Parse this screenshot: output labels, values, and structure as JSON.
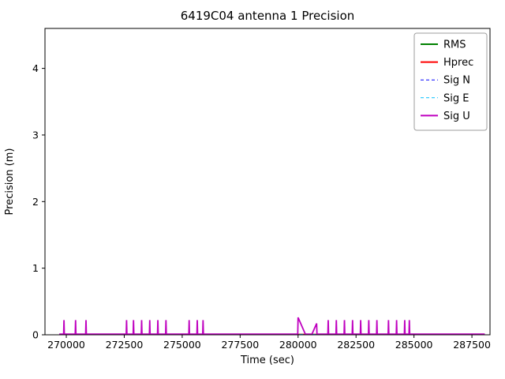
{
  "chart_data": {
    "type": "line",
    "title": "6419C04 antenna 1 Precision",
    "xlabel": "Time (sec)",
    "ylabel": "Precision (m)",
    "xlim": [
      269080,
      288280
    ],
    "ylim": [
      0,
      4.6
    ],
    "xticks": [
      270000,
      272500,
      275000,
      277500,
      280000,
      282500,
      285000,
      287500
    ],
    "yticks": [
      0,
      1,
      2,
      3,
      4
    ],
    "grid": false,
    "legend_position": "upper right",
    "series": [
      {
        "name": "RMS",
        "color": "#008000",
        "style": "solid",
        "width": 1.6,
        "points": [
          [
            269700,
            0.005
          ],
          [
            288050,
            0.005
          ]
        ]
      },
      {
        "name": "Hprec",
        "color": "#ff0000",
        "style": "solid",
        "width": 1.6,
        "points": [
          [
            269700,
            0.006
          ],
          [
            288050,
            0.006
          ]
        ]
      },
      {
        "name": "Sig N",
        "color": "#0000ff",
        "style": "dashed",
        "width": 1,
        "points": [
          [
            269700,
            0.004
          ],
          [
            288050,
            0.004
          ]
        ]
      },
      {
        "name": "Sig E",
        "color": "#00bfff",
        "style": "dashed",
        "width": 1,
        "points": [
          [
            269700,
            0.004
          ],
          [
            288050,
            0.004
          ]
        ]
      },
      {
        "name": "Sig U",
        "color": "#bf00bf",
        "style": "solid",
        "width": 1.8,
        "points": [
          [
            269700,
            0.01
          ],
          [
            269885,
            0.01
          ],
          [
            269900,
            0.22
          ],
          [
            269915,
            0.01
          ],
          [
            270385,
            0.01
          ],
          [
            270400,
            0.22
          ],
          [
            270415,
            0.01
          ],
          [
            270835,
            0.01
          ],
          [
            270850,
            0.22
          ],
          [
            270865,
            0.01
          ],
          [
            272585,
            0.01
          ],
          [
            272600,
            0.22
          ],
          [
            272615,
            0.01
          ],
          [
            272885,
            0.01
          ],
          [
            272900,
            0.22
          ],
          [
            272915,
            0.01
          ],
          [
            273235,
            0.01
          ],
          [
            273250,
            0.22
          ],
          [
            273265,
            0.01
          ],
          [
            273585,
            0.01
          ],
          [
            273600,
            0.22
          ],
          [
            273615,
            0.01
          ],
          [
            273935,
            0.01
          ],
          [
            273950,
            0.22
          ],
          [
            273965,
            0.01
          ],
          [
            274285,
            0.01
          ],
          [
            274300,
            0.22
          ],
          [
            274315,
            0.01
          ],
          [
            275285,
            0.01
          ],
          [
            275300,
            0.22
          ],
          [
            275315,
            0.01
          ],
          [
            275635,
            0.01
          ],
          [
            275650,
            0.22
          ],
          [
            275665,
            0.01
          ],
          [
            275885,
            0.01
          ],
          [
            275900,
            0.22
          ],
          [
            275915,
            0.01
          ],
          [
            279985,
            0.01
          ],
          [
            280000,
            0.26
          ],
          [
            280300,
            0.02
          ],
          [
            280310,
            0.01
          ],
          [
            280600,
            0.01
          ],
          [
            280800,
            0.17
          ],
          [
            280815,
            0.01
          ],
          [
            281285,
            0.01
          ],
          [
            281300,
            0.22
          ],
          [
            281315,
            0.01
          ],
          [
            281635,
            0.01
          ],
          [
            281650,
            0.22
          ],
          [
            281665,
            0.01
          ],
          [
            281985,
            0.01
          ],
          [
            282000,
            0.22
          ],
          [
            282015,
            0.01
          ],
          [
            282335,
            0.01
          ],
          [
            282350,
            0.22
          ],
          [
            282365,
            0.01
          ],
          [
            282685,
            0.01
          ],
          [
            282700,
            0.22
          ],
          [
            282715,
            0.01
          ],
          [
            283035,
            0.01
          ],
          [
            283050,
            0.22
          ],
          [
            283065,
            0.01
          ],
          [
            283385,
            0.01
          ],
          [
            283400,
            0.22
          ],
          [
            283415,
            0.01
          ],
          [
            283885,
            0.01
          ],
          [
            283900,
            0.22
          ],
          [
            283915,
            0.01
          ],
          [
            284235,
            0.01
          ],
          [
            284250,
            0.22
          ],
          [
            284265,
            0.01
          ],
          [
            284585,
            0.01
          ],
          [
            284600,
            0.22
          ],
          [
            284615,
            0.01
          ],
          [
            284785,
            0.01
          ],
          [
            284800,
            0.22
          ],
          [
            284815,
            0.01
          ],
          [
            288050,
            0.01
          ]
        ]
      }
    ]
  }
}
